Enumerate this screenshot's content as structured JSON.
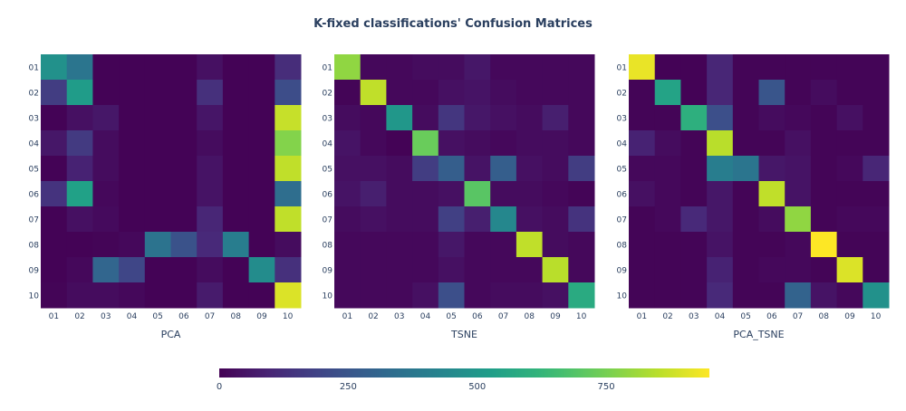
{
  "title": "K-fixed classifications' Confusion Matrices",
  "chart_data": [
    {
      "type": "heatmap",
      "name": "PCA",
      "xlabel": "PCA",
      "x": [
        "01",
        "02",
        "03",
        "04",
        "05",
        "06",
        "07",
        "08",
        "09",
        "10"
      ],
      "y": [
        "01",
        "02",
        "03",
        "04",
        "05",
        "06",
        "07",
        "08",
        "09",
        "10"
      ],
      "z": [
        [
          480,
          370,
          5,
          5,
          5,
          5,
          40,
          5,
          5,
          120
        ],
        [
          170,
          520,
          5,
          5,
          5,
          5,
          130,
          5,
          5,
          220
        ],
        [
          5,
          40,
          60,
          5,
          5,
          5,
          55,
          5,
          5,
          870
        ],
        [
          60,
          160,
          30,
          5,
          5,
          5,
          30,
          5,
          5,
          770
        ],
        [
          5,
          90,
          30,
          5,
          5,
          5,
          50,
          5,
          5,
          860
        ],
        [
          140,
          540,
          20,
          5,
          5,
          5,
          50,
          5,
          5,
          340
        ],
        [
          5,
          40,
          25,
          5,
          5,
          5,
          100,
          5,
          5,
          860
        ],
        [
          5,
          5,
          10,
          20,
          360,
          240,
          110,
          400,
          5,
          30
        ],
        [
          5,
          20,
          310,
          200,
          5,
          5,
          30,
          5,
          460,
          130
        ],
        [
          10,
          30,
          30,
          20,
          5,
          5,
          70,
          5,
          5,
          900
        ]
      ],
      "zmin": 0,
      "zmax": 950
    },
    {
      "type": "heatmap",
      "name": "TSNE",
      "xlabel": "TSNE",
      "x": [
        "01",
        "02",
        "03",
        "04",
        "05",
        "06",
        "07",
        "08",
        "09",
        "10"
      ],
      "y": [
        "01",
        "02",
        "03",
        "04",
        "05",
        "06",
        "07",
        "08",
        "09",
        "10"
      ],
      "z": [
        [
          790,
          20,
          20,
          30,
          30,
          60,
          20,
          20,
          20,
          20
        ],
        [
          10,
          860,
          20,
          20,
          40,
          50,
          30,
          20,
          20,
          20
        ],
        [
          30,
          20,
          500,
          30,
          150,
          60,
          40,
          30,
          80,
          20
        ],
        [
          50,
          20,
          5,
          730,
          40,
          30,
          20,
          30,
          30,
          20
        ],
        [
          40,
          40,
          30,
          170,
          280,
          50,
          280,
          40,
          30,
          170
        ],
        [
          50,
          80,
          30,
          30,
          40,
          700,
          30,
          30,
          20,
          10
        ],
        [
          30,
          40,
          30,
          30,
          180,
          80,
          440,
          40,
          30,
          140
        ],
        [
          20,
          20,
          20,
          20,
          60,
          20,
          20,
          860,
          30,
          20
        ],
        [
          20,
          20,
          20,
          20,
          40,
          20,
          20,
          20,
          850,
          20
        ],
        [
          20,
          20,
          20,
          40,
          230,
          20,
          30,
          30,
          40,
          580
        ]
      ],
      "zmin": 0,
      "zmax": 950
    },
    {
      "type": "heatmap",
      "name": "PCA_TSNE",
      "xlabel": "PCA_TSNE",
      "x": [
        "01",
        "02",
        "03",
        "04",
        "05",
        "06",
        "07",
        "08",
        "09",
        "10"
      ],
      "y": [
        "01",
        "02",
        "03",
        "04",
        "05",
        "06",
        "07",
        "08",
        "09",
        "10"
      ],
      "z": [
        [
          920,
          5,
          5,
          100,
          10,
          10,
          10,
          10,
          10,
          10
        ],
        [
          10,
          550,
          5,
          100,
          10,
          250,
          10,
          30,
          10,
          10
        ],
        [
          10,
          10,
          600,
          230,
          10,
          30,
          20,
          10,
          40,
          10
        ],
        [
          90,
          30,
          10,
          850,
          10,
          10,
          40,
          10,
          10,
          10
        ],
        [
          20,
          20,
          10,
          400,
          370,
          60,
          50,
          10,
          20,
          100
        ],
        [
          40,
          20,
          10,
          60,
          10,
          860,
          50,
          10,
          10,
          10
        ],
        [
          10,
          20,
          110,
          60,
          10,
          30,
          790,
          10,
          20,
          20
        ],
        [
          10,
          10,
          10,
          50,
          10,
          10,
          20,
          950,
          10,
          10
        ],
        [
          10,
          10,
          10,
          90,
          10,
          20,
          20,
          10,
          900,
          10
        ],
        [
          10,
          10,
          10,
          110,
          10,
          10,
          300,
          50,
          20,
          480
        ]
      ],
      "zmin": 0,
      "zmax": 950
    }
  ],
  "colorbar": {
    "colorscale": "Viridis",
    "ticks": [
      0,
      250,
      500,
      750
    ],
    "zmin": 0,
    "zmax": 950
  }
}
